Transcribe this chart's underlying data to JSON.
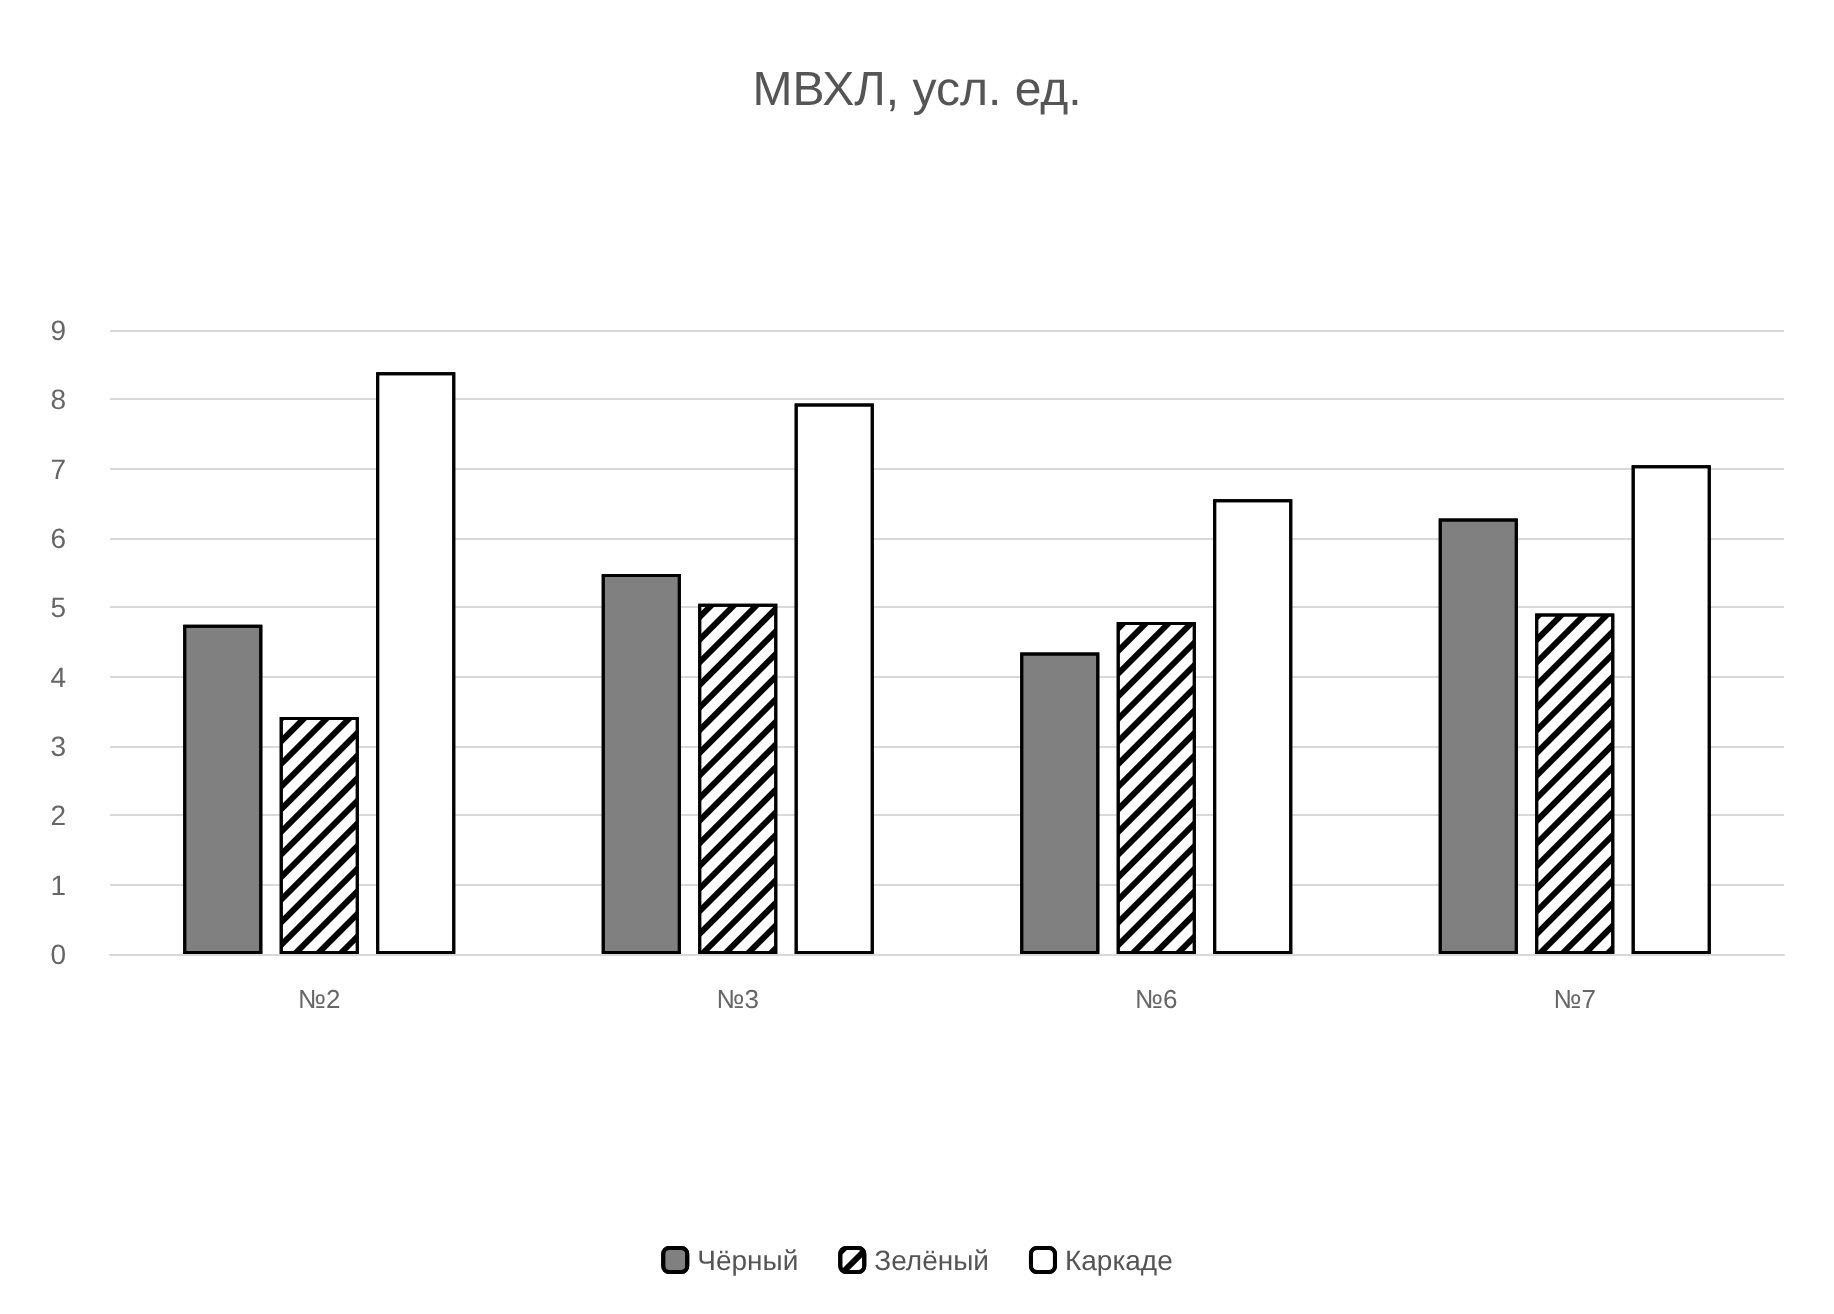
{
  "chart_data": {
    "type": "bar",
    "title": "МВХЛ, усл. ед.",
    "categories": [
      "№2",
      "№3",
      "№6",
      "№7"
    ],
    "series": [
      {
        "name": "Чёрный",
        "color": "#808080",
        "values": [
          4.75,
          5.48,
          4.35,
          6.28
        ]
      },
      {
        "name": "Зелёный",
        "color": "#ffffff",
        "values": [
          3.42,
          5.05,
          4.79,
          4.91
        ]
      },
      {
        "name": "Каркаде",
        "color": "#ffffff",
        "values": [
          8.39,
          7.94,
          6.56,
          7.05
        ]
      }
    ],
    "ylim": [
      0,
      9
    ],
    "yticks": [
      0,
      1,
      2,
      3,
      4,
      5,
      6,
      7,
      8,
      9
    ],
    "grid": "y",
    "legend": "bottom"
  }
}
